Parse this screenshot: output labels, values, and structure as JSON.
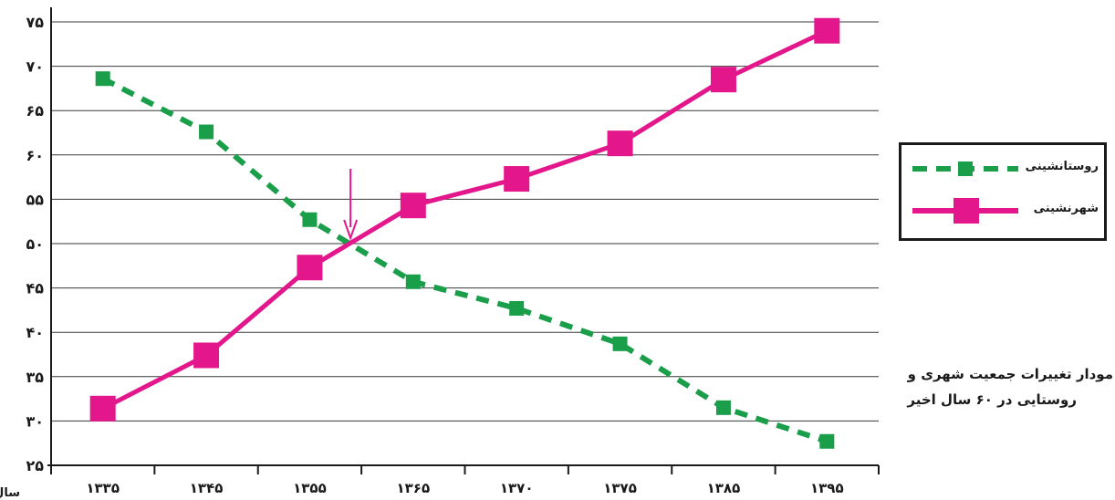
{
  "chart_data": {
    "type": "line",
    "categories": [
      "۱۳۳۵",
      "۱۳۴۵",
      "۱۳۵۵",
      "۱۳۶۵",
      "۱۳۷۰",
      "۱۳۷۵",
      "۱۳۸۵",
      "۱۳۹۵"
    ],
    "yticks": [
      "۲۵",
      "۳۰",
      "۳۵",
      "۴۰",
      "۴۵",
      "۵۰",
      "۵۵",
      "۶۰",
      "۶۵",
      "۷۰",
      "۷۵"
    ],
    "ylim": [
      25,
      75
    ],
    "xlabel": "سال",
    "ylabel": "",
    "title": "",
    "grid": true,
    "series": [
      {
        "name": "روستانشینی",
        "color": "#1a9e4a",
        "style": "dashed",
        "marker": "square",
        "values": [
          68.6,
          62.6,
          52.7,
          45.7,
          42.7,
          38.7,
          31.5,
          27.7
        ]
      },
      {
        "name": "شهرنشینی",
        "color": "#e3168c",
        "style": "solid",
        "marker": "square",
        "values": [
          31.4,
          37.4,
          47.3,
          54.3,
          57.3,
          61.3,
          68.5,
          74.0
        ]
      }
    ],
    "annotation": {
      "type": "arrow",
      "x_between": [
        "۱۳۵۵",
        "۱۳۶۵"
      ],
      "y": 50,
      "color": "#e3168c"
    },
    "legend": {
      "position": "right",
      "entries": [
        "روستانشینی",
        "شهرنشینی"
      ]
    },
    "caption_lines": [
      "مودار تغییرات جمعیت شهری و",
      "روستایی در ۶۰ سال اخیر"
    ]
  }
}
